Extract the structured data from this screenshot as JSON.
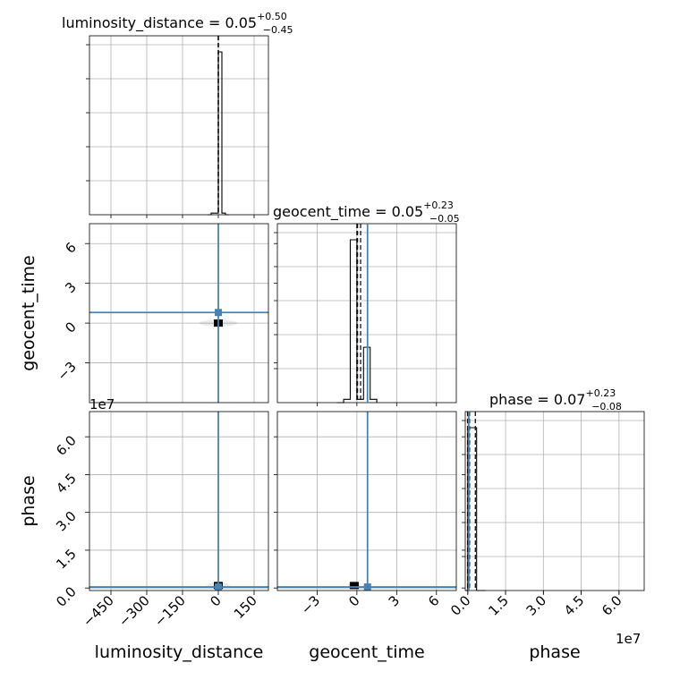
{
  "colors": {
    "truth": "#4682b4",
    "line": "#000000",
    "grid": "#b0b0b0"
  },
  "chart_data": {
    "type": "corner",
    "parameters": [
      "luminosity_distance",
      "geocent_time",
      "phase"
    ],
    "titles": {
      "luminosity_distance": {
        "name": "luminosity_distance",
        "median": "0.05",
        "plus": "+0.50",
        "minus": "−0.45"
      },
      "geocent_time": {
        "name": "geocent_time",
        "median": "0.05",
        "plus": "+0.23",
        "minus": "−0.05"
      },
      "phase": {
        "name": "phase",
        "median": "0.07",
        "plus": "+0.23",
        "minus": "−0.08"
      }
    },
    "axes": {
      "luminosity_distance": {
        "range": [
          -540,
          210
        ],
        "ticks": [
          -450,
          -300,
          -150,
          0,
          150
        ],
        "ticklabels": [
          "−450",
          "−300",
          "−150",
          "0",
          "150"
        ]
      },
      "geocent_time": {
        "range": [
          -6,
          7.5
        ],
        "ticks": [
          -3,
          0,
          3,
          6
        ],
        "ticklabels": [
          "−3",
          "0",
          "3",
          "6"
        ]
      },
      "phase": {
        "range": [
          -0.1,
          7.0
        ],
        "ticks": [
          0,
          1.5,
          3.0,
          4.5,
          6.0
        ],
        "ticklabels": [
          "0.0",
          "1.5",
          "3.0",
          "4.5",
          "6.0"
        ],
        "offset": "1e7"
      }
    },
    "truths": {
      "luminosity_distance": 0,
      "geocent_time": 0.8,
      "phase": 0.04
    },
    "histograms": {
      "luminosity_distance": {
        "edges": [
          -45,
          -30,
          -15,
          0,
          15,
          30,
          45
        ],
        "counts": [
          0,
          0.01,
          0.01,
          1.0,
          0.01,
          0,
          0
        ],
        "quantiles": [
          -0.45,
          0.05,
          0.55
        ]
      },
      "geocent_time": {
        "edges": [
          -1.5,
          -1.0,
          -0.5,
          0,
          0.5,
          1.0,
          1.5
        ],
        "counts": [
          0,
          0.02,
          1.0,
          0.02,
          0.34,
          0.02,
          0
        ],
        "quantiles": [
          0.0,
          0.05,
          0.28
        ]
      },
      "phase": {
        "edges": [
          -0.1,
          0.0,
          0.35,
          0.7
        ],
        "counts": [
          0,
          1.0,
          0
        ],
        "quantiles": [
          -0.01,
          0.07,
          0.3
        ]
      }
    },
    "scatter": {
      "luminosity_distance_geocent_time": {
        "center": [
          0,
          0
        ],
        "spread_x": 50,
        "spread_y": 0.15
      },
      "luminosity_distance_phase": {
        "center": [
          0,
          0.1
        ],
        "spread_x": 30,
        "spread_y": 0.05
      },
      "geocent_time_phase": {
        "center": [
          -0.2,
          0.1
        ],
        "spread_x": 0.3,
        "spread_y": 0.05
      }
    },
    "grid": true
  }
}
